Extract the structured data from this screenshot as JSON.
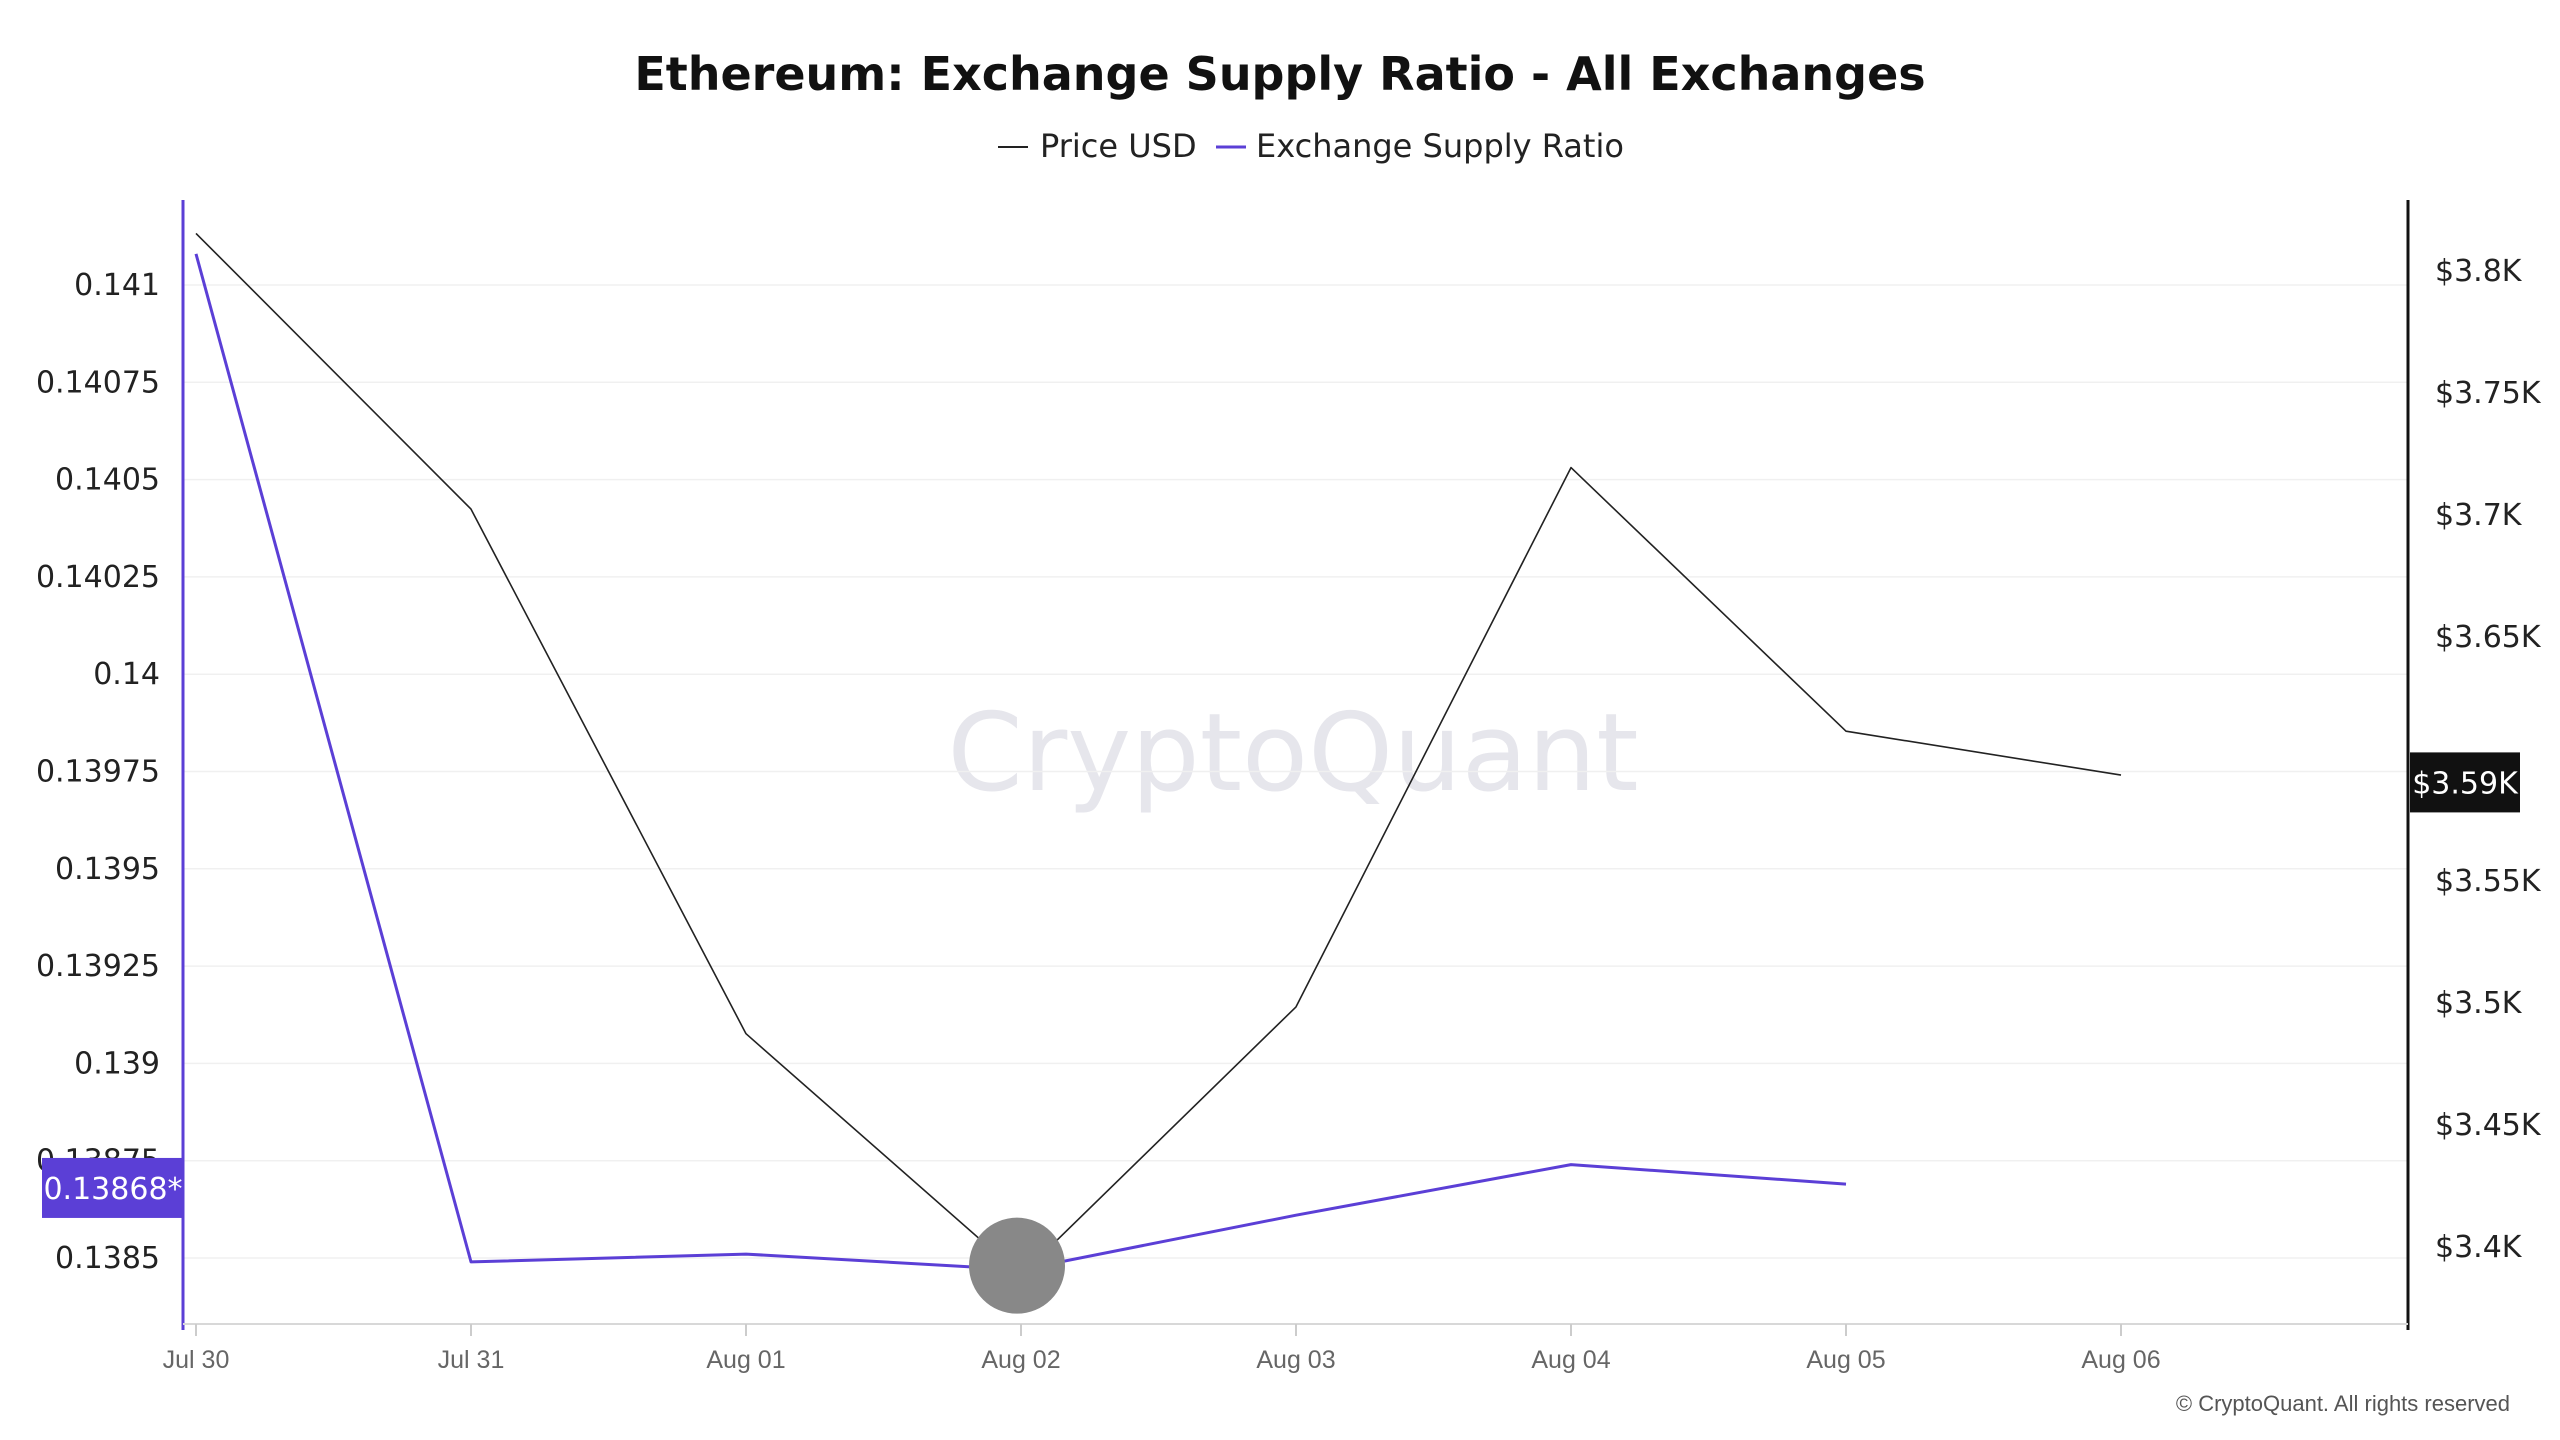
{
  "chart_data": {
    "type": "line",
    "title": "Ethereum: Exchange Supply Ratio - All Exchanges",
    "x": [
      "Jul 30",
      "Jul 31",
      "Aug 01",
      "Aug 02",
      "Aug 03",
      "Aug 04",
      "Aug 05",
      "Aug 06"
    ],
    "series": [
      {
        "name": "Price USD",
        "axis": "right",
        "color": "#222222",
        "values": [
          3815,
          3702,
          3487,
          3388,
          3498,
          3719,
          3611,
          3593
        ]
      },
      {
        "name": "Exchange Supply Ratio",
        "axis": "left",
        "color": "#5b3fd6",
        "values": [
          0.14108,
          0.13849,
          0.13851,
          0.13847,
          0.13861,
          0.13874,
          0.13869,
          null
        ]
      }
    ],
    "left_axis": {
      "ticks": [
        "0.1385",
        "0.13875",
        "0.139",
        "0.13925",
        "0.1395",
        "0.13975",
        "0.14",
        "0.14025",
        "0.1405",
        "0.14075",
        "0.141"
      ],
      "color": "#5b3fd6",
      "current_label": "0.13868*"
    },
    "right_axis": {
      "ticks": [
        "$3.4K",
        "$3.45K",
        "$3.5K",
        "$3.55K",
        "$3.65K",
        "$3.7K",
        "$3.75K",
        "$3.8K"
      ],
      "current_label": "$3.59K"
    },
    "highlight": {
      "x": "Aug 02"
    },
    "grid": true,
    "legend_position": "top-center"
  },
  "watermark": "CryptoQuant",
  "copyright": "© CryptoQuant. All rights reserved"
}
